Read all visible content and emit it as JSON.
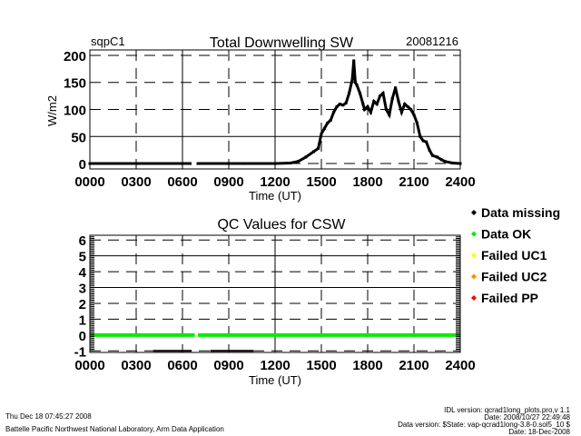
{
  "chart_data": [
    {
      "type": "scatter",
      "title": "Total Downwelling SW",
      "site": "sqpC1",
      "date": "20081216",
      "xlabel": "Time (UT)",
      "ylabel": "W/m2",
      "xlim": [
        0,
        24
      ],
      "ylim": [
        -10,
        210
      ],
      "xticks": [
        0,
        3,
        6,
        9,
        12,
        15,
        18,
        21,
        24
      ],
      "xtick_labels": [
        "0000",
        "0300",
        "0600",
        "0900",
        "1200",
        "1500",
        "1800",
        "2100",
        "2400"
      ],
      "yticks": [
        0,
        50,
        100,
        150,
        200
      ],
      "ytick_labels": [
        "0",
        "50",
        "100",
        "150",
        "200"
      ],
      "grid": true,
      "series": [
        {
          "color": "#000000",
          "segments": [
            [
              [
                0,
                0
              ],
              [
                3,
                0
              ],
              [
                6,
                0
              ],
              [
                6.5,
                0
              ]
            ],
            [
              [
                7,
                0
              ],
              [
                10,
                0
              ],
              [
                12,
                0
              ],
              [
                13,
                1
              ],
              [
                13.5,
                4
              ],
              [
                14,
                12
              ],
              [
                14.5,
                22
              ],
              [
                14.8,
                28
              ],
              [
                15,
                55
              ],
              [
                15.2,
                65
              ],
              [
                15.4,
                75
              ],
              [
                15.6,
                80
              ],
              [
                15.8,
                95
              ],
              [
                16,
                105
              ],
              [
                16.2,
                110
              ],
              [
                16.4,
                108
              ],
              [
                16.6,
                112
              ],
              [
                16.8,
                130
              ],
              [
                17,
                155
              ],
              [
                17.1,
                190
              ],
              [
                17.2,
                150
              ],
              [
                17.3,
                145
              ],
              [
                17.5,
                130
              ],
              [
                17.7,
                110
              ],
              [
                17.8,
                100
              ],
              [
                18,
                105
              ],
              [
                18.2,
                95
              ],
              [
                18.4,
                115
              ],
              [
                18.6,
                110
              ],
              [
                18.8,
                125
              ],
              [
                19,
                130
              ],
              [
                19.2,
                100
              ],
              [
                19.4,
                90
              ],
              [
                19.6,
                120
              ],
              [
                19.8,
                140
              ],
              [
                20,
                115
              ],
              [
                20.2,
                95
              ],
              [
                20.4,
                110
              ],
              [
                20.6,
                105
              ],
              [
                20.8,
                100
              ],
              [
                21,
                90
              ],
              [
                21.2,
                75
              ],
              [
                21.4,
                50
              ],
              [
                21.6,
                42
              ],
              [
                21.8,
                40
              ],
              [
                22,
                25
              ],
              [
                22.2,
                15
              ],
              [
                22.5,
                12
              ],
              [
                22.8,
                7
              ],
              [
                23,
                4
              ],
              [
                23.5,
                1
              ],
              [
                24,
                0
              ]
            ]
          ]
        }
      ]
    },
    {
      "type": "scatter",
      "title": "QC Values for CSW",
      "xlabel": "Time (UT)",
      "xlim": [
        0,
        24
      ],
      "ylim": [
        -1.1,
        6.3
      ],
      "xticks": [
        0,
        3,
        6,
        9,
        12,
        15,
        18,
        21,
        24
      ],
      "xtick_labels": [
        "0000",
        "0300",
        "0600",
        "0900",
        "1200",
        "1500",
        "1800",
        "2100",
        "2400"
      ],
      "yticks": [
        -1,
        0,
        1,
        2,
        3,
        4,
        5,
        6
      ],
      "ytick_labels": [
        "-1",
        "0",
        "1",
        "2",
        "3",
        "4",
        "5",
        "6"
      ],
      "grid": true,
      "series": [
        {
          "name": "Data OK",
          "color": "#00ee00",
          "value": 0,
          "ranges": [
            [
              0,
              6.8
            ],
            [
              7.0,
              24
            ]
          ]
        },
        {
          "name": "Data missing",
          "color": "#000000",
          "value": -1,
          "ranges": [
            [
              4.1,
              6.6
            ],
            [
              7.8,
              10.6
            ]
          ]
        }
      ],
      "legend": {
        "placement": "right",
        "entries": [
          {
            "label": "Data missing",
            "color": "#000000"
          },
          {
            "label": "Data OK",
            "color": "#00ee00"
          },
          {
            "label": "Failed UC1",
            "color": "#ffff00"
          },
          {
            "label": "Failed UC2",
            "color": "#ff8c00"
          },
          {
            "label": "Failed PP",
            "color": "#ff0000"
          }
        ]
      }
    }
  ],
  "footer": {
    "timestamp": "Thu Dec 18 07:45:27 2008",
    "org": "Battelle Pacific Northwest National Laboratory, Arm Data Application",
    "idl_version": "IDL version: qcrad1long_plots.pro,v 1.1",
    "idl_date": "Date: 2008/10/27 22:49:48",
    "data_version": "Data version: $State: vap-qcrad1long-3.8-0.sol5_10 $",
    "data_date": "Date: 18-Dec-2008"
  }
}
